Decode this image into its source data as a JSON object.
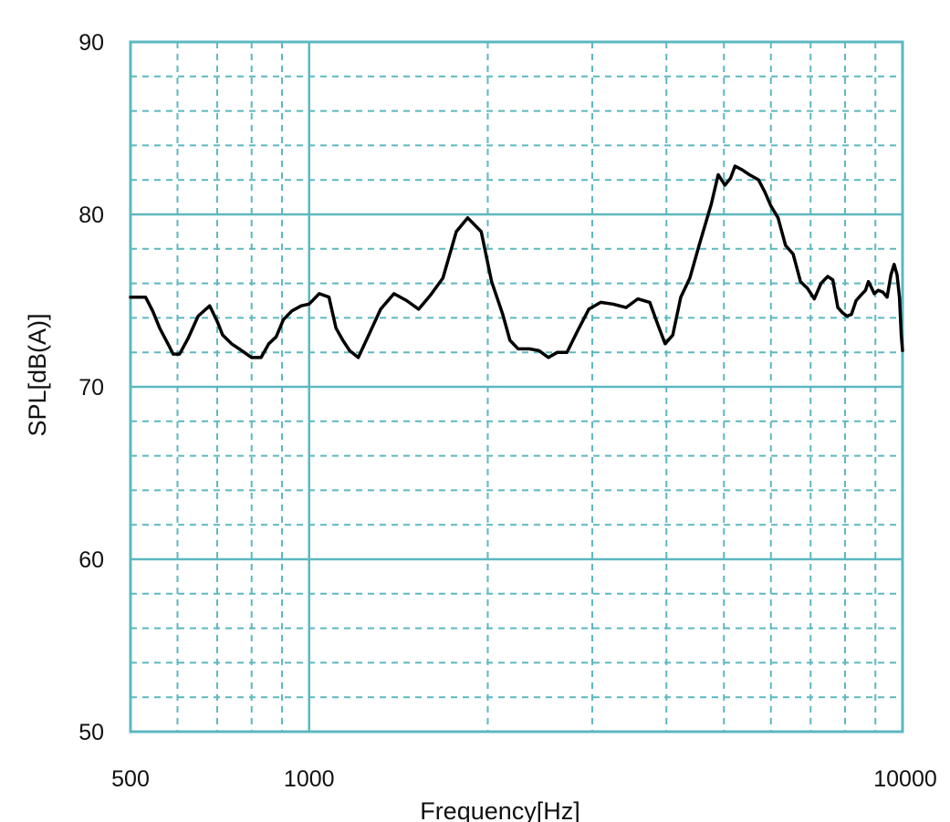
{
  "chart_data": {
    "type": "line",
    "title": "",
    "xlabel": "Frequency[Hz]",
    "ylabel": "SPL[dB(A)]",
    "x_scale": "log",
    "xlim": [
      500,
      10000
    ],
    "ylim": [
      50,
      90
    ],
    "x_ticks": [
      {
        "value": 500,
        "label": "500"
      },
      {
        "value": 1000,
        "label": "1000"
      },
      {
        "value": 10000,
        "label": "10000"
      }
    ],
    "y_ticks": [
      {
        "value": 50,
        "label": "50"
      },
      {
        "value": 60,
        "label": "60"
      },
      {
        "value": 70,
        "label": "70"
      },
      {
        "value": 80,
        "label": "80"
      },
      {
        "value": 90,
        "label": "90"
      }
    ],
    "grid": {
      "major_x": [
        1000
      ],
      "minor_x": [
        600,
        700,
        800,
        900,
        2000,
        3000,
        4000,
        5000,
        6000,
        7000,
        8000,
        9000
      ],
      "major_y": [
        60,
        70,
        80
      ],
      "minor_y": [
        52,
        54,
        56,
        58,
        62,
        64,
        66,
        68,
        72,
        74,
        76,
        78,
        82,
        84,
        86,
        88
      ]
    },
    "colors": {
      "grid": "#5cb8bf",
      "line": "#000000",
      "background": "#ffffff",
      "text": "#111111"
    },
    "series": [
      {
        "values": [
          [
            500,
            75.2
          ],
          [
            530,
            75.2
          ],
          [
            545,
            74.4
          ],
          [
            560,
            73.4
          ],
          [
            580,
            72.4
          ],
          [
            590,
            71.9
          ],
          [
            605,
            71.9
          ],
          [
            625,
            72.8
          ],
          [
            650,
            74.1
          ],
          [
            680,
            74.7
          ],
          [
            700,
            73.8
          ],
          [
            715,
            73.0
          ],
          [
            740,
            72.5
          ],
          [
            770,
            72.1
          ],
          [
            800,
            71.7
          ],
          [
            830,
            71.7
          ],
          [
            855,
            72.5
          ],
          [
            880,
            72.9
          ],
          [
            905,
            73.9
          ],
          [
            935,
            74.4
          ],
          [
            970,
            74.7
          ],
          [
            1000,
            74.8
          ],
          [
            1040,
            75.4
          ],
          [
            1080,
            75.2
          ],
          [
            1110,
            73.4
          ],
          [
            1140,
            72.7
          ],
          [
            1170,
            72.1
          ],
          [
            1210,
            71.7
          ],
          [
            1260,
            73.0
          ],
          [
            1320,
            74.5
          ],
          [
            1390,
            75.4
          ],
          [
            1460,
            75.0
          ],
          [
            1530,
            74.5
          ],
          [
            1600,
            75.3
          ],
          [
            1680,
            76.3
          ],
          [
            1770,
            79.0
          ],
          [
            1850,
            79.8
          ],
          [
            1950,
            79.0
          ],
          [
            2030,
            76.1
          ],
          [
            2120,
            74.2
          ],
          [
            2180,
            72.7
          ],
          [
            2250,
            72.2
          ],
          [
            2350,
            72.2
          ],
          [
            2440,
            72.1
          ],
          [
            2530,
            71.7
          ],
          [
            2620,
            72.0
          ],
          [
            2720,
            72.0
          ],
          [
            2830,
            73.2
          ],
          [
            2960,
            74.5
          ],
          [
            3100,
            74.9
          ],
          [
            3250,
            74.8
          ],
          [
            3420,
            74.6
          ],
          [
            3580,
            75.1
          ],
          [
            3750,
            74.9
          ],
          [
            3870,
            73.6
          ],
          [
            3980,
            72.5
          ],
          [
            4100,
            73.0
          ],
          [
            4230,
            75.2
          ],
          [
            4380,
            76.3
          ],
          [
            4550,
            78.3
          ],
          [
            4760,
            80.6
          ],
          [
            4890,
            82.3
          ],
          [
            5020,
            81.7
          ],
          [
            5130,
            82.1
          ],
          [
            5220,
            82.8
          ],
          [
            5360,
            82.6
          ],
          [
            5520,
            82.3
          ],
          [
            5720,
            82.0
          ],
          [
            5860,
            81.3
          ],
          [
            6000,
            80.5
          ],
          [
            6170,
            79.8
          ],
          [
            6350,
            78.2
          ],
          [
            6540,
            77.7
          ],
          [
            6730,
            76.1
          ],
          [
            6920,
            75.7
          ],
          [
            7100,
            75.1
          ],
          [
            7290,
            76.0
          ],
          [
            7480,
            76.4
          ],
          [
            7630,
            76.2
          ],
          [
            7780,
            74.6
          ],
          [
            7920,
            74.3
          ],
          [
            8060,
            74.1
          ],
          [
            8200,
            74.2
          ],
          [
            8350,
            75.0
          ],
          [
            8500,
            75.3
          ],
          [
            8660,
            75.6
          ],
          [
            8760,
            76.1
          ],
          [
            8850,
            75.8
          ],
          [
            8960,
            75.4
          ],
          [
            9100,
            75.6
          ],
          [
            9260,
            75.5
          ],
          [
            9420,
            75.2
          ],
          [
            9560,
            76.5
          ],
          [
            9680,
            77.1
          ],
          [
            9790,
            76.5
          ],
          [
            9880,
            75.2
          ],
          [
            9950,
            73.0
          ],
          [
            10000,
            72.1
          ]
        ]
      }
    ]
  }
}
